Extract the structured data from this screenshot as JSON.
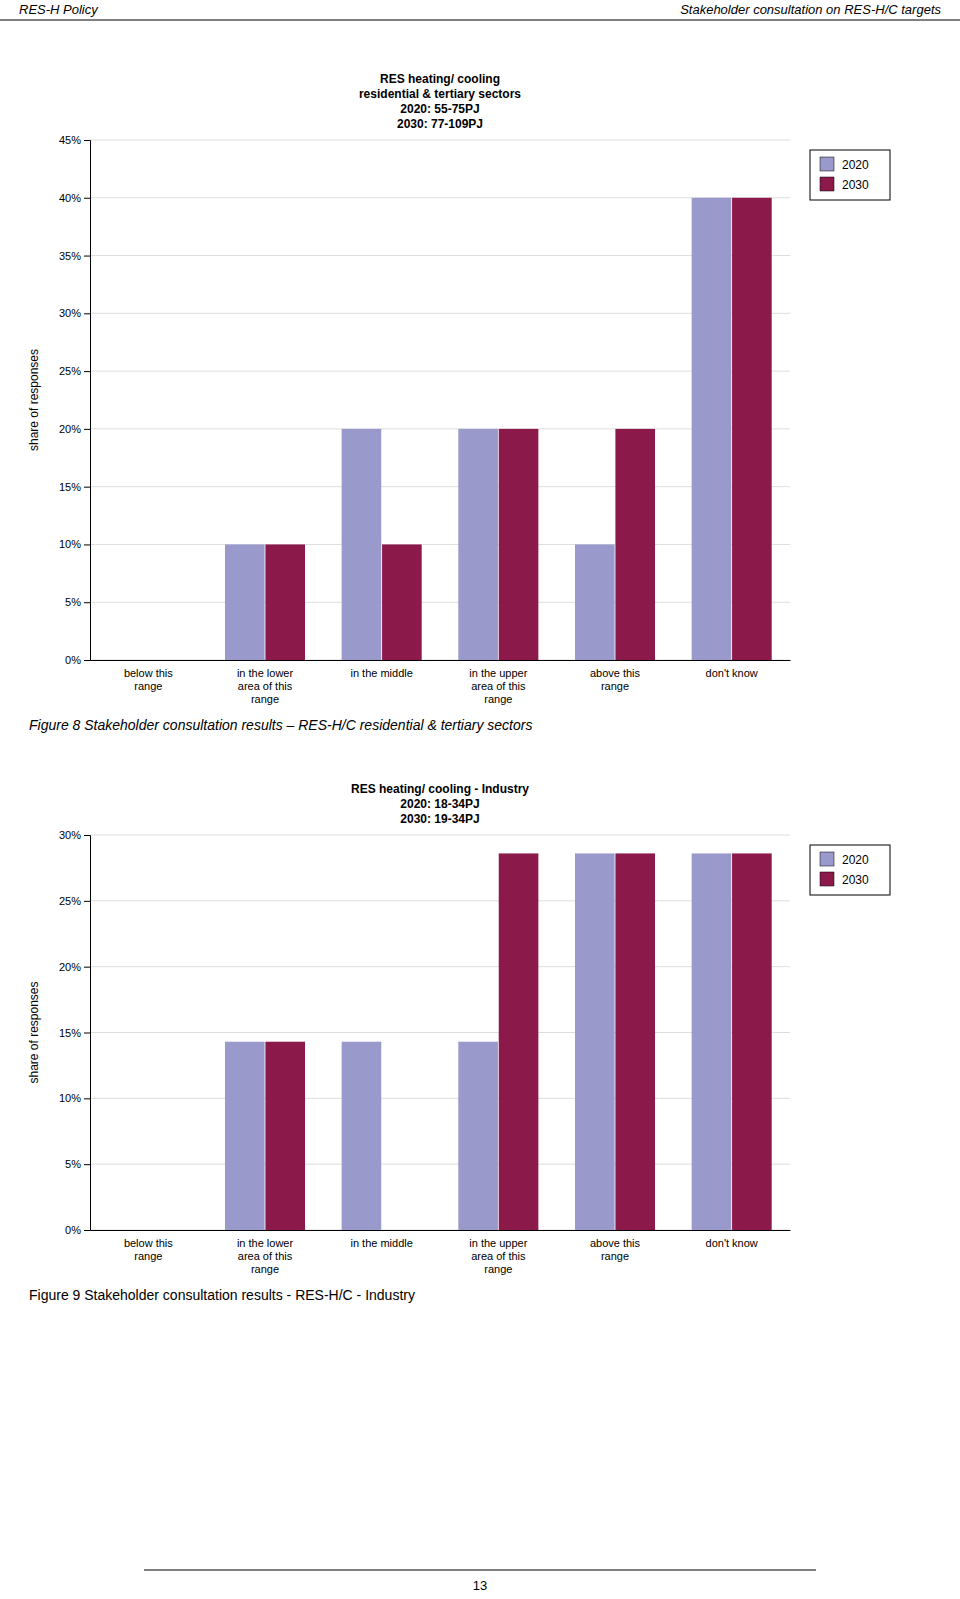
{
  "page": {
    "header_left": "RES-H Policy",
    "header_right": "Stakeholder consultation on RES-H/C targets",
    "page_number": "13"
  },
  "chart_data": [
    {
      "type": "bar",
      "title": "RES heating/ cooling\nresidential & tertiary sectors\n2020: 55-75PJ\n2030: 77-109PJ",
      "caption": "Figure 8 Stakeholder consultation results – RES-H/C residential & tertiary sectors",
      "categories": [
        "below this\nrange",
        "in the lower\narea of this\nrange",
        "in the middle",
        "in the upper\narea of this\nrange",
        "above this\nrange",
        "don't know"
      ],
      "series": [
        {
          "name": "2020",
          "color": "#9999CC",
          "values": [
            0,
            0.1,
            0.2,
            0.2,
            0.1,
            0.4
          ]
        },
        {
          "name": "2030",
          "color": "#8B1A4A",
          "values": [
            0,
            0.1,
            0.1,
            0.2,
            0.2,
            0.4
          ]
        }
      ],
      "y_label": "share of responses",
      "ylim": [
        0,
        0.45
      ],
      "yticks": [
        {
          "value": 0,
          "label": "0%"
        },
        {
          "value": 0.05,
          "label": "5%"
        },
        {
          "value": 0.1,
          "label": "10%"
        },
        {
          "value": 0.15,
          "label": "15%"
        },
        {
          "value": 0.2,
          "label": "20%"
        },
        {
          "value": 0.25,
          "label": "25%"
        },
        {
          "value": 0.3,
          "label": "30%"
        },
        {
          "value": 0.35,
          "label": "35%"
        },
        {
          "value": 0.4,
          "label": "40%"
        },
        {
          "value": 0.45,
          "label": "45%"
        }
      ],
      "grid": true,
      "legend": "right"
    },
    {
      "type": "bar",
      "title": "RES heating/ cooling - Industry\n2020: 18-34PJ\n2030: 19-34PJ",
      "caption": "Figure 9 Stakeholder consultation results - RES-H/C - Industry",
      "categories": [
        "below this\nrange",
        "in the lower\narea of this\nrange",
        "in the middle",
        "in the upper\narea of this\nrange",
        "above this\nrange",
        "don't know"
      ],
      "series": [
        {
          "name": "2020",
          "color": "#9999CC",
          "values": [
            0,
            0.143,
            0.143,
            0.143,
            0.286,
            0.286
          ]
        },
        {
          "name": "2030",
          "color": "#8B1A4A",
          "values": [
            0,
            0.143,
            0,
            0.286,
            0.286,
            0.286
          ]
        }
      ],
      "y_label": "share of responses",
      "ylim": [
        0,
        0.3
      ],
      "yticks": [
        {
          "value": 0,
          "label": "0%"
        },
        {
          "value": 0.05,
          "label": "5%"
        },
        {
          "value": 0.1,
          "label": "10%"
        },
        {
          "value": 0.15,
          "label": "15%"
        },
        {
          "value": 0.2,
          "label": "20%"
        },
        {
          "value": 0.25,
          "label": "25%"
        },
        {
          "value": 0.3,
          "label": "30%"
        }
      ],
      "grid": true,
      "legend": "right"
    }
  ]
}
